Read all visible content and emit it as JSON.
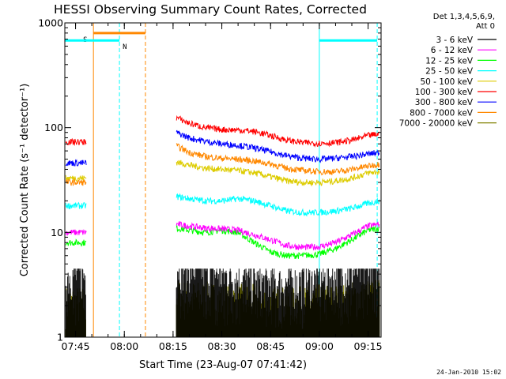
{
  "chart_data": {
    "type": "line",
    "title": "HESSI Observing Summary Count Rates, Corrected",
    "xlabel": "Start Time (23-Aug-07 07:41:42)",
    "ylabel": "Corrected Count Rate (s⁻¹ detector⁻¹)",
    "x_unit": "minutes of day (UT)",
    "xlim": [
      461.7,
      559.0
    ],
    "ylim": [
      1,
      1000
    ],
    "y_scale": "log",
    "x_ticks": [
      {
        "value": 465,
        "label": "07:45"
      },
      {
        "value": 480,
        "label": "08:00"
      },
      {
        "value": 495,
        "label": "08:15"
      },
      {
        "value": 510,
        "label": "08:30"
      },
      {
        "value": 525,
        "label": "08:45"
      },
      {
        "value": 540,
        "label": "09:00"
      },
      {
        "value": 555,
        "label": "09:15"
      }
    ],
    "y_ticks": [
      {
        "value": 1,
        "label": "1"
      },
      {
        "value": 10,
        "label": "10"
      },
      {
        "value": 100,
        "label": "100"
      },
      {
        "value": 1000,
        "label": "1000"
      }
    ],
    "legend_header": [
      "Det 1,3,4,5,6,9,",
      "Att 0"
    ],
    "legend_position": "right",
    "series": [
      {
        "name": "3 - 6 keV",
        "color": "#000000",
        "x": [
          462,
          468.3,
          496,
          500,
          505,
          510,
          515,
          520,
          525,
          530,
          535,
          540,
          545,
          550,
          555,
          558.5
        ],
        "y": [
          3.0,
          3.0,
          3.8,
          3.6,
          3.4,
          3.0,
          2.8,
          2.6,
          2.5,
          2.5,
          2.6,
          2.7,
          2.9,
          3.2,
          3.6,
          3.8
        ]
      },
      {
        "name": "6 - 12 keV",
        "color": "#ff00ff",
        "x": [
          462,
          468.3,
          496,
          500,
          505,
          510,
          515,
          520,
          525,
          530,
          535,
          540,
          545,
          550,
          555,
          558.5
        ],
        "y": [
          10,
          10,
          12,
          11.5,
          11,
          10.8,
          10.5,
          9.5,
          8.5,
          7.5,
          7.2,
          7.3,
          8.0,
          9.5,
          11.5,
          12
        ]
      },
      {
        "name": "12 - 25 keV",
        "color": "#00ff00",
        "x": [
          462,
          468.3,
          496,
          500,
          505,
          510,
          515,
          520,
          525,
          530,
          535,
          540,
          545,
          550,
          555,
          558.5
        ],
        "y": [
          8,
          8,
          11,
          10.5,
          10,
          10.5,
          10,
          8.0,
          6.5,
          6.0,
          6.0,
          6.2,
          7.0,
          8.5,
          10.5,
          11
        ]
      },
      {
        "name": "25 - 50 keV",
        "color": "#00ffff",
        "x": [
          462,
          468.3,
          496,
          500,
          505,
          510,
          515,
          520,
          525,
          530,
          535,
          540,
          545,
          550,
          555,
          558.5
        ],
        "y": [
          18,
          18,
          22,
          21,
          20,
          20,
          21,
          20,
          18,
          16,
          15.5,
          15.5,
          16,
          17,
          19,
          20
        ]
      },
      {
        "name": "50 - 100 keV",
        "color": "#ddcc00",
        "x": [
          462,
          468.3,
          496,
          500,
          505,
          510,
          515,
          520,
          525,
          530,
          535,
          540,
          545,
          550,
          555,
          558.5
        ],
        "y": [
          33,
          33,
          47,
          44,
          41,
          40,
          39,
          37,
          34,
          31,
          30,
          30,
          31,
          33,
          37,
          38
        ]
      },
      {
        "name": "100 - 300 keV",
        "color": "#ff0000",
        "x": [
          462,
          468.3,
          496,
          500,
          505,
          510,
          515,
          520,
          525,
          530,
          535,
          540,
          545,
          550,
          555,
          558.5
        ],
        "y": [
          73,
          73,
          125,
          110,
          100,
          96,
          95,
          92,
          84,
          76,
          72,
          71,
          72,
          76,
          84,
          87
        ]
      },
      {
        "name": "300 - 800 keV",
        "color": "#0000ff",
        "x": [
          462,
          468.3,
          496,
          500,
          505,
          510,
          515,
          520,
          525,
          530,
          535,
          540,
          545,
          550,
          555,
          558.5
        ],
        "y": [
          46,
          46,
          90,
          80,
          74,
          70,
          68,
          64,
          59,
          54,
          51,
          50,
          51,
          53,
          56,
          58
        ]
      },
      {
        "name": "800 - 7000 keV",
        "color": "#ff8800",
        "x": [
          462,
          468.3,
          496,
          500,
          505,
          510,
          515,
          520,
          525,
          530,
          535,
          540,
          545,
          550,
          555,
          558.5
        ],
        "y": [
          30,
          30,
          67,
          58,
          53,
          51,
          50,
          48,
          45,
          41,
          39,
          38,
          38,
          40,
          43,
          45
        ]
      },
      {
        "name": "7000 - 20000 keV",
        "color": "#808000",
        "x": [
          462,
          468.3,
          496,
          500,
          505,
          510,
          515,
          520,
          525,
          530,
          535,
          540,
          545,
          550,
          555,
          558.5
        ],
        "y": [
          1.7,
          1.7,
          2.0,
          1.9,
          1.9,
          1.8,
          1.8,
          1.8,
          1.7,
          1.7,
          1.7,
          1.8,
          1.8,
          1.9,
          2.0,
          2.0
        ]
      }
    ],
    "gaps": [
      {
        "from": 468.3,
        "to": 496
      }
    ],
    "flags": [
      {
        "label": "S",
        "color": "#ff8800",
        "x_start": 470.5,
        "x_end": 486.5,
        "value": 800
      },
      {
        "label": "N",
        "color": "#00ffff",
        "segments": [
          [
            461.7,
            478.5
          ],
          [
            540,
            557.8
          ]
        ],
        "value": 680
      }
    ],
    "vlines": [
      {
        "x": 470.5,
        "color": "#ff8800",
        "style": "solid"
      },
      {
        "x": 478.5,
        "color": "#00ffff",
        "style": "dashed"
      },
      {
        "x": 486.5,
        "color": "#ff8800",
        "style": "dashed"
      },
      {
        "x": 540,
        "color": "#00ffff",
        "style": "solid"
      },
      {
        "x": 557.8,
        "color": "#00ffff",
        "style": "dashed"
      }
    ],
    "footer": "24-Jan-2010 15:02"
  }
}
